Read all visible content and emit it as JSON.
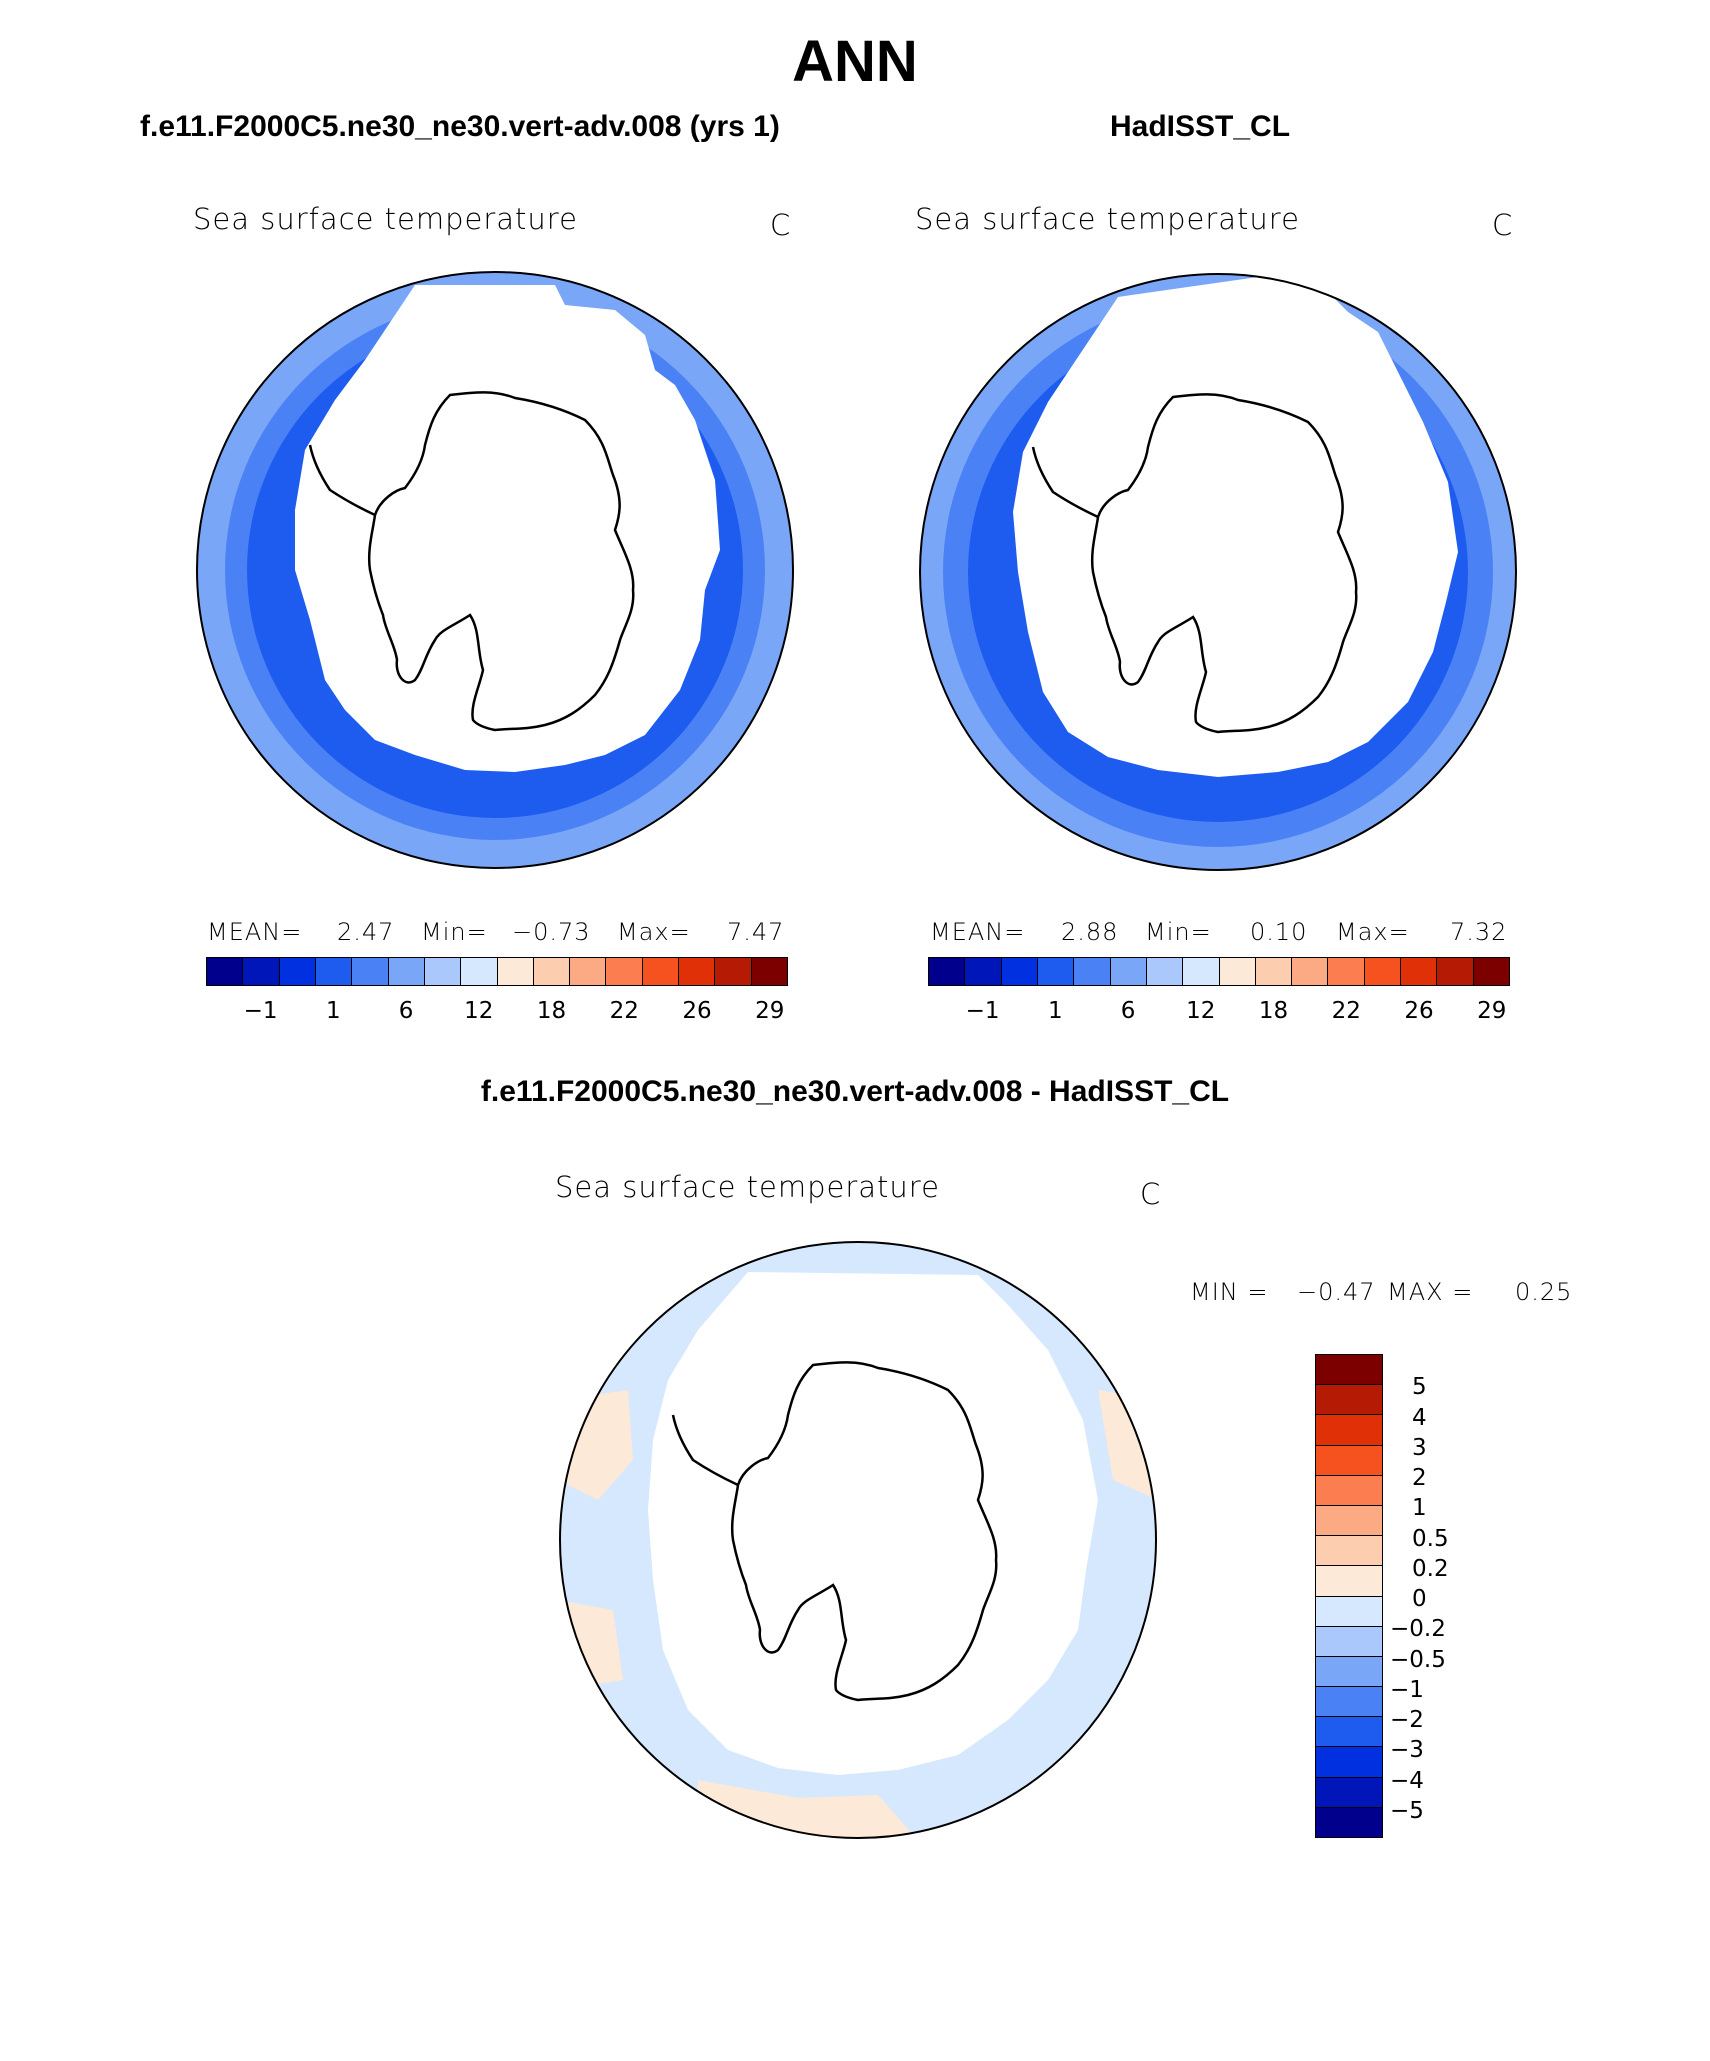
{
  "header": {
    "main_title": "ANN",
    "case_title": "f.e11.F2000C5.ne30_ne30.vert-adv.008 (yrs 1)",
    "obs_title": "HadISST_CL",
    "diff_title": "f.e11.F2000C5.ne30_ne30.vert-adv.008 - HadISST_CL"
  },
  "chart_data": [
    {
      "type": "heatmap",
      "projection": "south-polar-stereographic",
      "variable": "Sea surface temperature",
      "units": "C",
      "stats": {
        "mean_label": "MEAN=",
        "mean": "2.47",
        "min_label": "Min=",
        "min": "−0.73",
        "max_label": "Max=",
        "max": "7.47"
      },
      "colorbar": {
        "orientation": "horizontal",
        "tick_labels": [
          "−1",
          "1",
          "6",
          "12",
          "18",
          "22",
          "26",
          "29"
        ],
        "colors": [
          "#00008c",
          "#0016b8",
          "#0030e0",
          "#1e5cf0",
          "#4a82f5",
          "#7aa6f8",
          "#aac8fb",
          "#d6e8fd",
          "#fde9d8",
          "#fdcdb0",
          "#fcaa84",
          "#fb7d50",
          "#f5521f",
          "#e03008",
          "#b51a04",
          "#7d0000"
        ]
      }
    },
    {
      "type": "heatmap",
      "projection": "south-polar-stereographic",
      "variable": "Sea surface temperature",
      "units": "C",
      "stats": {
        "mean_label": "MEAN=",
        "mean": "2.88",
        "min_label": "Min=",
        "min": "0.10",
        "max_label": "Max=",
        "max": "7.32"
      },
      "colorbar": {
        "orientation": "horizontal",
        "tick_labels": [
          "−1",
          "1",
          "6",
          "12",
          "18",
          "22",
          "26",
          "29"
        ],
        "colors": [
          "#00008c",
          "#0016b8",
          "#0030e0",
          "#1e5cf0",
          "#4a82f5",
          "#7aa6f8",
          "#aac8fb",
          "#d6e8fd",
          "#fde9d8",
          "#fdcdb0",
          "#fcaa84",
          "#fb7d50",
          "#f5521f",
          "#e03008",
          "#b51a04",
          "#7d0000"
        ]
      }
    },
    {
      "type": "heatmap",
      "projection": "south-polar-stereographic",
      "variable": "Sea surface temperature",
      "units": "C",
      "stats": {
        "min_label": "MIN =",
        "min": "−0.47",
        "max_label": "MAX =",
        "max": "0.25"
      },
      "colorbar": {
        "orientation": "vertical",
        "tick_labels": [
          "5",
          "4",
          "3",
          "2",
          "1",
          "0.5",
          "0.2",
          "0",
          "−0.2",
          "−0.5",
          "−1",
          "−2",
          "−3",
          "−4",
          "−5"
        ],
        "colors": [
          "#7d0000",
          "#b51a04",
          "#e03008",
          "#f5521f",
          "#fb7d50",
          "#fcaa84",
          "#fdcdb0",
          "#fde9d8",
          "#d6e8fd",
          "#aac8fb",
          "#7aa6f8",
          "#4a82f5",
          "#1e5cf0",
          "#0030e0",
          "#0016b8",
          "#00008c"
        ]
      }
    }
  ]
}
